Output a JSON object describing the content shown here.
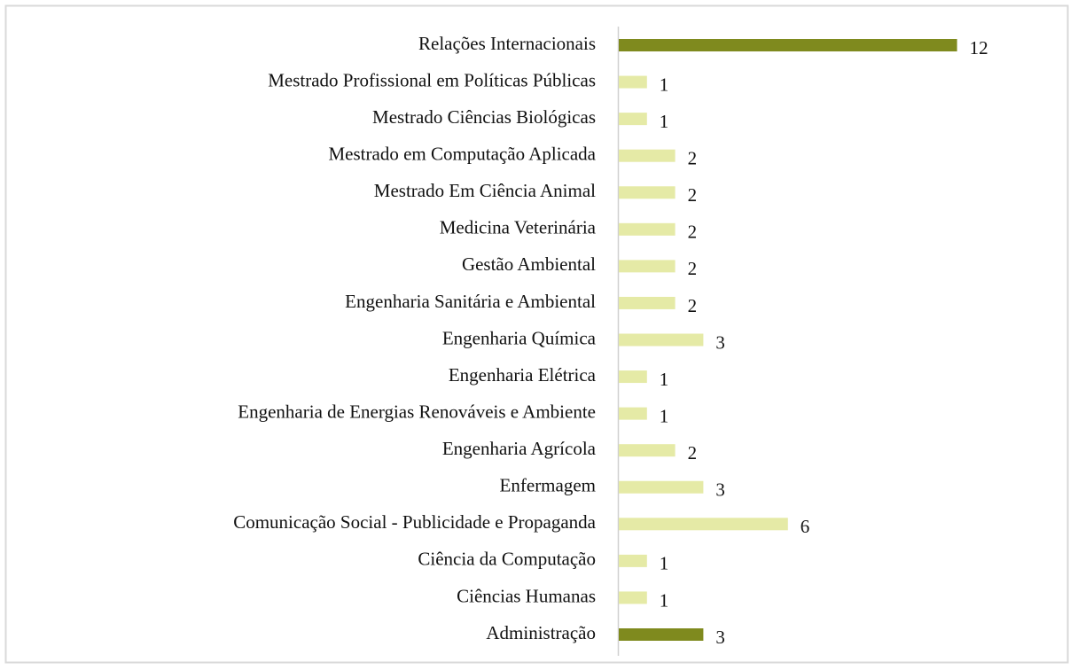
{
  "chart_data": {
    "type": "bar",
    "orientation": "horizontal",
    "categories": [
      "Relações Internacionais",
      "Mestrado Profissional em Políticas Públicas",
      "Mestrado Ciências Biológicas",
      "Mestrado em Computação Aplicada",
      "Mestrado Em Ciência Animal",
      "Medicina Veterinária",
      "Gestão Ambiental",
      "Engenharia Sanitária e Ambiental",
      "Engenharia Química",
      "Engenharia Elétrica",
      "Engenharia de Energias Renováveis e Ambiente",
      "Engenharia Agrícola",
      "Enfermagem",
      "Comunicação Social - Publicidade e Propaganda",
      "Ciência da Computação",
      "Ciências Humanas",
      "Administração"
    ],
    "values": [
      12,
      1,
      1,
      2,
      2,
      2,
      2,
      2,
      3,
      1,
      1,
      2,
      3,
      6,
      1,
      1,
      3
    ],
    "colors": [
      "#7f8a1e",
      "#e5eaa6",
      "#e5eaa6",
      "#e5eaa6",
      "#e5eaa6",
      "#e5eaa6",
      "#e5eaa6",
      "#e5eaa6",
      "#e5eaa6",
      "#e5eaa6",
      "#e5eaa6",
      "#e5eaa6",
      "#e5eaa6",
      "#e5eaa6",
      "#e5eaa6",
      "#e5eaa6",
      "#7f8a1e"
    ]
  }
}
